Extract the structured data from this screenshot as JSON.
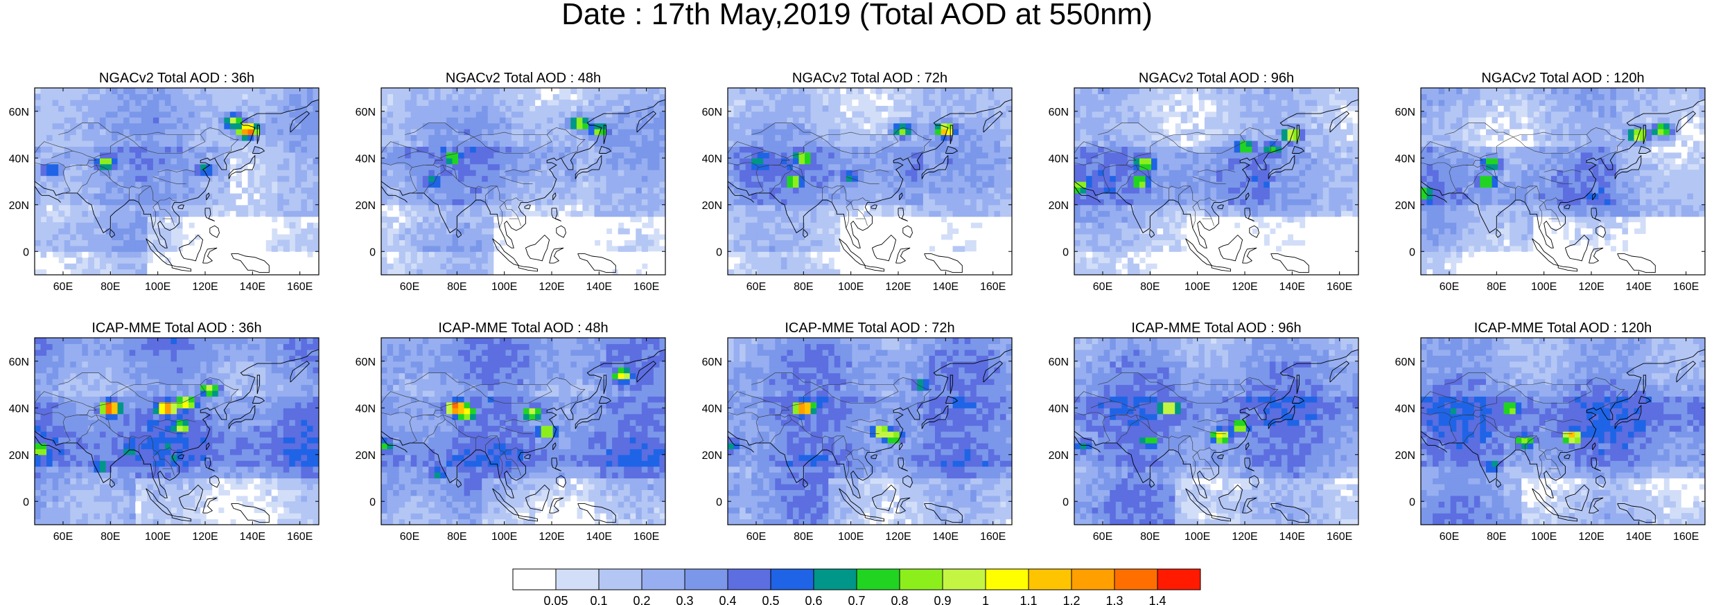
{
  "title": "Date : 17th May,2019 (Total AOD at 550nm)",
  "axes": {
    "lon_ticks": [
      "60E",
      "80E",
      "100E",
      "120E",
      "140E",
      "160E"
    ],
    "lon_values": [
      60,
      80,
      100,
      120,
      140,
      160
    ],
    "lat_ticks": [
      "60N",
      "40N",
      "20N",
      "0"
    ],
    "lat_values": [
      60,
      40,
      20,
      0
    ],
    "lon_range": [
      48,
      168
    ],
    "lat_range": [
      -10,
      70
    ]
  },
  "rows": [
    {
      "model": "NGACv2",
      "panels": [
        {
          "title": "NGACv2 Total AOD : 36h",
          "lead": "36h"
        },
        {
          "title": "NGACv2 Total AOD : 48h",
          "lead": "48h"
        },
        {
          "title": "NGACv2 Total AOD : 72h",
          "lead": "72h"
        },
        {
          "title": "NGACv2 Total AOD : 96h",
          "lead": "96h"
        },
        {
          "title": "NGACv2 Total AOD : 120h",
          "lead": "120h"
        }
      ]
    },
    {
      "model": "ICAP-MME",
      "panels": [
        {
          "title": "ICAP-MME Total AOD : 36h",
          "lead": "36h"
        },
        {
          "title": "ICAP-MME Total AOD : 48h",
          "lead": "48h"
        },
        {
          "title": "ICAP-MME Total AOD : 72h",
          "lead": "72h"
        },
        {
          "title": "ICAP-MME Total AOD : 96h",
          "lead": "96h"
        },
        {
          "title": "ICAP-MME Total AOD : 120h",
          "lead": "120h"
        }
      ]
    }
  ],
  "colorbar": {
    "levels": [
      "0.05",
      "0.1",
      "0.2",
      "0.3",
      "0.4",
      "0.5",
      "0.6",
      "0.7",
      "0.8",
      "0.9",
      "1",
      "1.1",
      "1.2",
      "1.3",
      "1.4"
    ],
    "colors": [
      "#ffffff",
      "#d2def8",
      "#b4c6f4",
      "#97aff0",
      "#7b97ea",
      "#5c6ee0",
      "#1f64e6",
      "#009688",
      "#22d422",
      "#8cef1c",
      "#c4f542",
      "#ffff00",
      "#ffc400",
      "#ff9f00",
      "#ff6f00",
      "#ff1a00"
    ]
  },
  "hotspots": {
    "NGACv2": {
      "36h": [
        [
          78,
          38,
          0.8
        ],
        [
          138,
          52,
          1.4
        ],
        [
          132,
          56,
          0.9
        ],
        [
          120,
          35,
          0.6
        ],
        [
          55,
          35,
          0.6
        ]
      ],
      "48h": [
        [
          78,
          40,
          0.7
        ],
        [
          132,
          55,
          0.9
        ],
        [
          140,
          52,
          0.8
        ],
        [
          70,
          30,
          0.6
        ]
      ],
      "72h": [
        [
          80,
          40,
          0.8
        ],
        [
          140,
          52,
          1.1
        ],
        [
          122,
          52,
          0.8
        ],
        [
          76,
          30,
          0.8
        ],
        [
          100,
          32,
          0.6
        ],
        [
          60,
          38,
          0.6
        ]
      ],
      "96h": [
        [
          78,
          38,
          0.9
        ],
        [
          120,
          45,
          0.8
        ],
        [
          140,
          50,
          1.0
        ],
        [
          132,
          44,
          0.7
        ],
        [
          76,
          30,
          0.8
        ],
        [
          50,
          28,
          0.8
        ]
      ],
      "120h": [
        [
          140,
          50,
          1.0
        ],
        [
          150,
          52,
          0.9
        ],
        [
          78,
          38,
          0.8
        ],
        [
          76,
          30,
          0.8
        ],
        [
          50,
          25,
          0.7
        ]
      ]
    },
    "ICAP-MME": {
      "36h": [
        [
          80,
          40,
          1.4
        ],
        [
          104,
          40,
          1.3
        ],
        [
          112,
          42,
          1.0
        ],
        [
          122,
          48,
          0.9
        ],
        [
          110,
          32,
          0.8
        ],
        [
          50,
          22,
          0.8
        ],
        [
          88,
          22,
          0.6
        ],
        [
          76,
          15,
          0.6
        ]
      ],
      "48h": [
        [
          80,
          40,
          1.4
        ],
        [
          112,
          38,
          0.9
        ],
        [
          118,
          30,
          0.9
        ],
        [
          150,
          54,
          0.9
        ],
        [
          84,
          38,
          0.9
        ],
        [
          50,
          24,
          0.6
        ],
        [
          72,
          12,
          0.6
        ]
      ],
      "72h": [
        [
          80,
          40,
          1.3
        ],
        [
          113,
          30,
          1.0
        ],
        [
          118,
          28,
          0.9
        ],
        [
          130,
          50,
          0.6
        ],
        [
          50,
          24,
          0.6
        ]
      ],
      "96h": [
        [
          88,
          40,
          1.0
        ],
        [
          110,
          28,
          1.0
        ],
        [
          118,
          32,
          0.8
        ],
        [
          80,
          26,
          0.7
        ],
        [
          52,
          24,
          0.6
        ]
      ],
      "120h": [
        [
          112,
          28,
          1.1
        ],
        [
          86,
          40,
          0.8
        ],
        [
          92,
          26,
          0.8
        ],
        [
          78,
          15,
          0.6
        ]
      ]
    }
  }
}
